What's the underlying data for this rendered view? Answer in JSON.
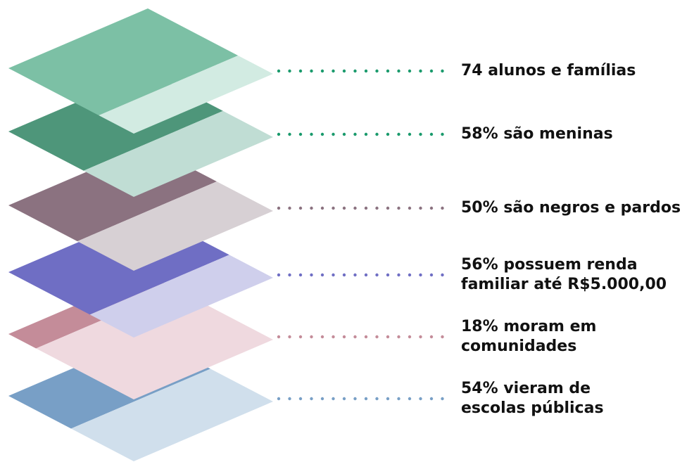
{
  "items": [
    {
      "lines": [
        "74 alunos e famílias"
      ]
    },
    {
      "lines": [
        "58% são meninas"
      ]
    },
    {
      "lines": [
        "50% são negros e pardos"
      ]
    },
    {
      "lines": [
        "56% possuem renda",
        "familiar até R$5.000,00"
      ]
    },
    {
      "lines": [
        "18% moram em",
        "comunidades"
      ]
    },
    {
      "lines": [
        "54% vieram de",
        "escolas públicas"
      ]
    }
  ]
}
